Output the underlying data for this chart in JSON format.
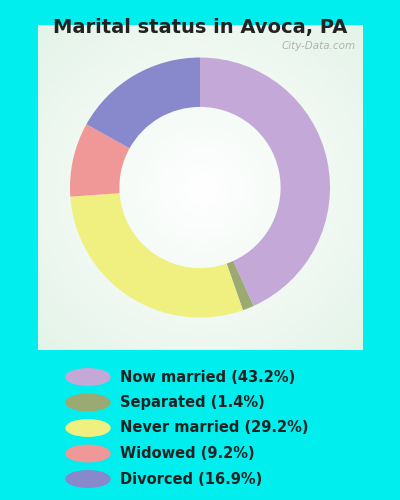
{
  "title": "Marital status in Avoca, PA",
  "background_outer": "#00EEEE",
  "background_inner_color1": "#e8f5ee",
  "background_inner_color2": "#f8fdfb",
  "segments": [
    {
      "label": "Now married (43.2%)",
      "value": 43.2,
      "color": "#c4a8d8"
    },
    {
      "label": "Separated (1.4%)",
      "value": 1.4,
      "color": "#9aaa72"
    },
    {
      "label": "Never married (29.2%)",
      "value": 29.2,
      "color": "#f0f080"
    },
    {
      "label": "Widowed (9.2%)",
      "value": 9.2,
      "color": "#f09898"
    },
    {
      "label": "Divorced (16.9%)",
      "value": 16.9,
      "color": "#8888cc"
    }
  ],
  "startangle": 90,
  "watermark": "City-Data.com",
  "title_fontsize": 14,
  "legend_fontsize": 10.5,
  "donut_width": 0.38
}
